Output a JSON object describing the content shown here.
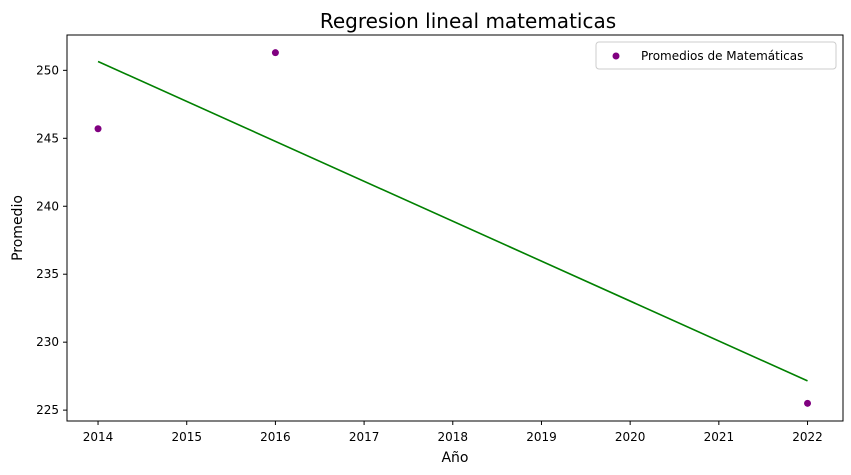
{
  "chart_data": {
    "type": "scatter",
    "title": "Regresion lineal matematicas",
    "xlabel": "Año",
    "ylabel": "Promedio",
    "xlim": [
      2013.65,
      2022.4
    ],
    "ylim": [
      224.2,
      252.6
    ],
    "xticks": [
      2014,
      2015,
      2016,
      2017,
      2018,
      2019,
      2020,
      2021,
      2022
    ],
    "yticks": [
      225,
      230,
      235,
      240,
      245,
      250
    ],
    "grid": false,
    "legend_position": "top-right",
    "series": [
      {
        "name": "Promedios de Matemáticas",
        "kind": "scatter",
        "color": "#800080",
        "x": [
          2014,
          2016,
          2022
        ],
        "y": [
          245.7,
          251.3,
          225.5
        ]
      },
      {
        "kind": "line",
        "color": "#008000",
        "x": [
          2014,
          2022
        ],
        "y": [
          250.65,
          227.15
        ]
      }
    ]
  }
}
